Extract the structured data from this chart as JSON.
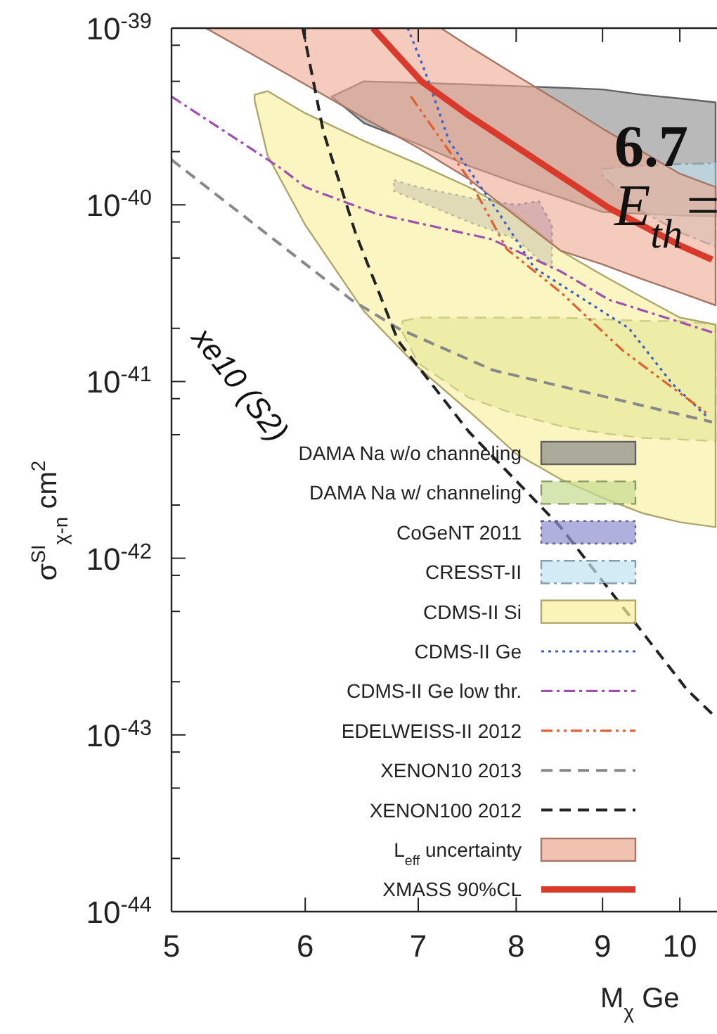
{
  "chart_data": {
    "type": "line",
    "xlabel": "M$_{χ}$   Ge",
    "ylabel": "σ$^{SI}$$_{χ-n}$   cm$^{2}$",
    "log": "xy",
    "xlim": [
      5,
      10.5
    ],
    "xticks": [
      5,
      6,
      7,
      8,
      9,
      10
    ],
    "ylim": [
      1e-44,
      1e-39
    ],
    "yticks": [
      {
        "value": 1e-44,
        "label": "10$^{-44}$"
      },
      {
        "value": 2e-44,
        "label": null
      },
      {
        "value": 5e-44,
        "label": null
      },
      {
        "value": 8e-44,
        "label": null
      },
      {
        "value": 1e-43,
        "label": "10$^{-43}$"
      },
      {
        "value": 2e-43,
        "label": null
      },
      {
        "value": 5e-43,
        "label": null
      },
      {
        "value": 8e-43,
        "label": null
      },
      {
        "value": 1e-42,
        "label": "10$^{-42}$"
      },
      {
        "value": 2e-42,
        "label": null
      },
      {
        "value": 5e-42,
        "label": null
      },
      {
        "value": 8e-42,
        "label": null
      },
      {
        "value": 1e-41,
        "label": "10$^{-41}$"
      },
      {
        "value": 2e-41,
        "label": null
      },
      {
        "value": 5e-41,
        "label": null
      },
      {
        "value": 8e-41,
        "label": null
      },
      {
        "value": 1e-40,
        "label": "10$^{-40}$"
      },
      {
        "value": 2e-40,
        "label": null
      },
      {
        "value": 5e-40,
        "label": null
      },
      {
        "value": 8e-40,
        "label": null
      },
      {
        "value": 1e-39,
        "label": "10$^{-39}$"
      }
    ],
    "legend": "bottom right",
    "annotations": [
      "xe10 (S2)",
      "6.7",
      "E$_{th}$="
    ],
    "series": [
      {
        "name": "DAMA Na w/o channeling",
        "type": "area",
        "color": "#8a8a8a",
        "line_style": "solid",
        "x": [
          6.22,
          6.5,
          7,
          7.5,
          8,
          8.5,
          9,
          9.5,
          10,
          10.5,
          10.5,
          10,
          9.5,
          9,
          8.5,
          8,
          7.5,
          7,
          6.5
        ],
        "values": [
          4.1e-40,
          5e-40,
          4.9e-40,
          4.8e-40,
          4.7e-40,
          4.6e-40,
          4.5e-40,
          4.2e-40,
          4e-40,
          3.8e-40,
          8.6e-41,
          8.7e-41,
          8.9e-41,
          9.1e-41,
          1.1e-40,
          1.33e-40,
          1.66e-40,
          2.2e-40,
          2.9e-40
        ]
      },
      {
        "name": "DAMA Na w/ channeling",
        "type": "area",
        "color": "#c5dc8e",
        "line_style": "dashed",
        "x": [
          6.85,
          7,
          7.5,
          8,
          8.5,
          9,
          9.5,
          10,
          10.5,
          10.5,
          10,
          9.5,
          9,
          8.5,
          8,
          7.5,
          7,
          6.85
        ],
        "values": [
          2.2e-41,
          2.3e-41,
          2.3e-41,
          2.3e-41,
          2.3e-41,
          2.25e-41,
          2.2e-41,
          2.2e-41,
          2.1e-41,
          4.6e-42,
          4.7e-42,
          4.8e-42,
          5.1e-42,
          5.6e-42,
          6.5e-42,
          8.1e-42,
          1.27e-41,
          1.9e-41
        ]
      },
      {
        "name": "CoGeNT 2011",
        "type": "area",
        "color": "#8e8ed2",
        "line_style": "dotted",
        "x": [
          6.77,
          7,
          7.5,
          8,
          8.25,
          8.4,
          8.4,
          8.25,
          8,
          7.5,
          7,
          6.77
        ],
        "values": [
          1.38e-40,
          1.26e-40,
          1.1e-40,
          1e-40,
          1.05e-40,
          7.7e-41,
          4.4e-41,
          4.9e-41,
          6.4e-41,
          8e-41,
          1.05e-40,
          1.2e-40
        ]
      },
      {
        "name": "CRESST-II",
        "type": "area",
        "color": "#bfe3f0",
        "line_style": "dashdot",
        "x": [
          9,
          9.5,
          10,
          10.5,
          10.5,
          10,
          9.5,
          9
        ],
        "values": [
          1.6e-40,
          1.66e-40,
          1.7e-40,
          1.72e-40,
          5.8e-41,
          7e-41,
          9.2e-41,
          1.46e-40
        ]
      },
      {
        "name": "CDMS-II Si",
        "type": "area",
        "color": "#f8ef9a",
        "line_style": "solid",
        "x": [
          5.6,
          5.7,
          6,
          6.5,
          7,
          7.5,
          8,
          8.5,
          9,
          9.5,
          10,
          10.5,
          10.5,
          10,
          9.5,
          9,
          8.5,
          8,
          7.5,
          7,
          6.5,
          6,
          5.7,
          5.6
        ],
        "values": [
          4.2e-40,
          4.4e-40,
          3.3e-40,
          2.3e-40,
          1.7e-40,
          1.26e-40,
          8.9e-41,
          5.5e-41,
          4e-41,
          3e-41,
          2.3e-41,
          2.1e-41,
          1.5e-42,
          1.6e-42,
          1.8e-42,
          2.2e-42,
          2.8e-42,
          3.9e-42,
          6.8e-42,
          1.2e-41,
          2.5e-41,
          7.7e-41,
          1.9e-40,
          3.9e-40
        ]
      },
      {
        "name": "CDMS-II Ge",
        "color": "#3a5fc8",
        "line_style": "dotted",
        "x": [
          6.9,
          7.06,
          7.3,
          7.8,
          8.2,
          9.33,
          9.9,
          10.4
        ],
        "values": [
          1e-39,
          5.8e-40,
          2.3e-40,
          9.2e-41,
          4.4e-41,
          2e-41,
          9.7e-42,
          6.2e-42
        ]
      },
      {
        "name": "CDMS-II Ge low thr.",
        "color": "#a050b0",
        "line_style": "dashdot",
        "x": [
          5,
          5.81,
          6,
          6.61,
          7.73,
          8.5,
          9.08,
          10.45
        ],
        "values": [
          4.1e-40,
          1.6e-40,
          1.26e-40,
          8.9e-41,
          6.4e-41,
          4.2e-41,
          2.9e-41,
          1.9e-41
        ]
      },
      {
        "name": "EDELWEISS-II 2012",
        "color": "#e06030",
        "line_style": "dashdotdot",
        "x": [
          6.93,
          7.5,
          7.9,
          8.5,
          9.25,
          10.4
        ],
        "values": [
          4.1e-40,
          1.4e-40,
          5.6e-41,
          3.2e-41,
          1.5e-41,
          6.5e-42
        ]
      },
      {
        "name": "XENON10 2013",
        "color": "#888888",
        "line_style": "dashed",
        "x": [
          5,
          6.39,
          6.81,
          7.75,
          9.08,
          10.45
        ],
        "values": [
          1.8e-40,
          2.9e-41,
          2e-41,
          1.16e-41,
          8.1e-42,
          5.9e-42
        ]
      },
      {
        "name": "XENON100 2012",
        "color": "#222222",
        "line_style": "dashed",
        "x": [
          5.98,
          6.15,
          6.43,
          6.81,
          7.5,
          8.5,
          10.1,
          10.5
        ],
        "values": [
          1e-39,
          2.6e-40,
          6.8e-41,
          1.7e-41,
          5.2e-42,
          1.5e-42,
          1.8e-43,
          1.26e-43
        ]
      },
      {
        "name": "L$_{eff}$ uncertainty",
        "type": "area",
        "color": "#eca890",
        "line_style": "solid",
        "x": [
          5.24,
          5.5,
          6,
          6.5,
          7,
          7.22,
          7.5,
          8,
          8.5,
          9,
          9.5,
          10,
          10.5,
          10.5,
          10,
          9.5,
          9,
          8.5,
          8,
          7.5,
          7.22,
          7,
          6.5,
          6,
          5.5
        ],
        "values": [
          1e-39,
          1e-39,
          1e-39,
          1e-39,
          1e-39,
          1e-39,
          7.9e-40,
          5.4e-40,
          3.8e-40,
          2.7e-40,
          2e-40,
          1.5e-40,
          1.26e-40,
          2.7e-41,
          3.2e-41,
          3.8e-41,
          4.6e-41,
          5.5e-41,
          8.6e-41,
          1.4e-40,
          1.75e-40,
          2.1e-40,
          3.1e-40,
          4.8e-40,
          7.7e-40
        ]
      },
      {
        "name": "XMASS 90%CL",
        "color": "#d93a2b",
        "line_style": "solid",
        "x": [
          6.58,
          7.03,
          7.5,
          9.08,
          10,
          10.45
        ],
        "values": [
          1e-39,
          5e-40,
          3.2e-40,
          9.6e-41,
          5.9e-41,
          4.9e-41
        ]
      }
    ]
  }
}
